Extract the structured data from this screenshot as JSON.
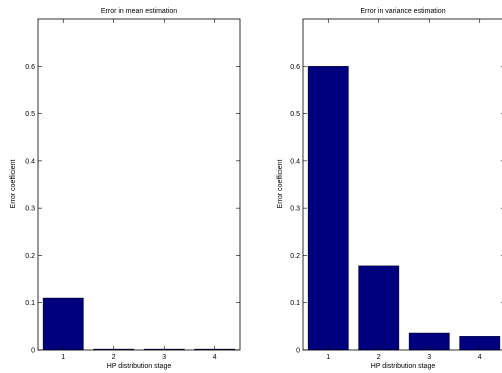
{
  "chart_data": [
    {
      "type": "bar",
      "title": "Error in mean estimation",
      "xlabel": "HP distribution stage",
      "ylabel": "Error coefficient",
      "categories": [
        "1",
        "2",
        "3",
        "4"
      ],
      "values": [
        0.11,
        0.002,
        0.002,
        0.002
      ],
      "ylim": [
        0,
        0.7
      ],
      "yticks": [
        "0",
        "0.1",
        "0.2",
        "0.3",
        "0.4",
        "0.5",
        "0.6"
      ],
      "bar_color": "#00007f",
      "grid": false
    },
    {
      "type": "bar",
      "title": "Error in variance estimation",
      "xlabel": "HP distribution stage",
      "ylabel": "Error coefficient",
      "categories": [
        "1",
        "2",
        "3",
        "4"
      ],
      "values": [
        0.6,
        0.178,
        0.036,
        0.029
      ],
      "ylim": [
        0,
        0.7
      ],
      "yticks": [
        "0",
        "0.1",
        "0.2",
        "0.3",
        "0.4",
        "0.5",
        "0.6"
      ],
      "bar_color": "#00007f",
      "grid": false
    }
  ]
}
